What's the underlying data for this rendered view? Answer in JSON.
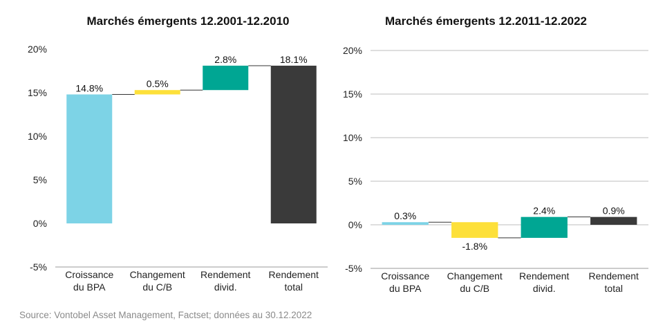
{
  "chart_data": [
    {
      "type": "bar",
      "subtype": "waterfall",
      "title": "Marchés émergents 12.2001-12.2010",
      "categories": [
        [
          "Croissance",
          "du BPA"
        ],
        [
          "Changement",
          "du C/B"
        ],
        [
          "Rendement",
          "divid."
        ],
        [
          "Rendement",
          "total"
        ]
      ],
      "values": [
        14.8,
        0.5,
        2.8,
        18.1
      ],
      "labels": [
        "14.8%",
        "0.5%",
        "2.8%",
        "18.1%"
      ],
      "is_total": [
        false,
        false,
        false,
        true
      ],
      "colors": [
        "#7dd3e6",
        "#fde03a",
        "#00a693",
        "#3a3a3a"
      ],
      "ylim": [
        -5,
        20
      ],
      "yticks": [
        -5,
        0,
        5,
        10,
        15,
        20
      ],
      "ytick_labels": [
        "-5%",
        "0%",
        "5%",
        "10%",
        "15%",
        "20%"
      ],
      "grid": false
    },
    {
      "type": "bar",
      "subtype": "waterfall",
      "title": "Marchés émergents 12.2011-12.2022",
      "categories": [
        [
          "Croissance",
          "du BPA"
        ],
        [
          "Changement",
          "du C/B"
        ],
        [
          "Rendement",
          "divid."
        ],
        [
          "Rendement",
          "total"
        ]
      ],
      "values": [
        0.3,
        -1.8,
        2.4,
        0.9
      ],
      "labels": [
        "0.3%",
        "-1.8%",
        "2.4%",
        "0.9%"
      ],
      "is_total": [
        false,
        false,
        false,
        true
      ],
      "colors": [
        "#7dd3e6",
        "#fde03a",
        "#00a693",
        "#3a3a3a"
      ],
      "ylim": [
        -5,
        20
      ],
      "yticks": [
        -5,
        0,
        5,
        10,
        15,
        20
      ],
      "ytick_labels": [
        "-5%",
        "0%",
        "5%",
        "10%",
        "15%",
        "20%"
      ],
      "grid": true
    }
  ],
  "source": "Source: Vontobel Asset Management, Factset; données au 30.12.2022"
}
